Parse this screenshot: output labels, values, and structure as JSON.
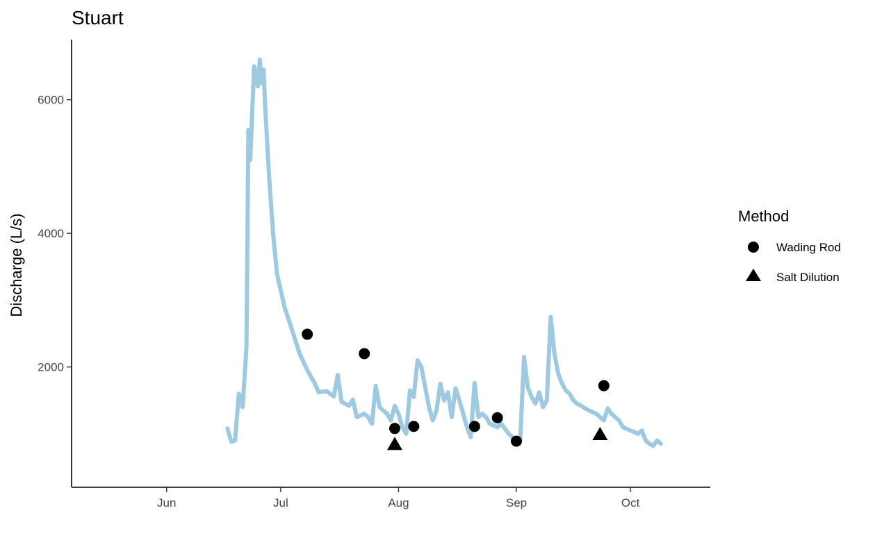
{
  "chart_data": {
    "type": "line",
    "title": "Stuart",
    "xlabel": "",
    "ylabel": "Discharge (L/s)",
    "x_axis_type": "date",
    "xlim": [
      "2021-05-07",
      "2021-10-22"
    ],
    "ylim": [
      200,
      6900
    ],
    "x_ticks": [
      {
        "date": "2021-06-01",
        "label": "Jun"
      },
      {
        "date": "2021-07-01",
        "label": "Jul"
      },
      {
        "date": "2021-08-01",
        "label": "Aug"
      },
      {
        "date": "2021-09-01",
        "label": "Sep"
      },
      {
        "date": "2021-10-01",
        "label": "Oct"
      }
    ],
    "y_ticks": [
      2000,
      4000,
      6000
    ],
    "grid": false,
    "legend_position": "right",
    "colors": {
      "line": "#9ecae1",
      "points": "#000000",
      "axis": "#000000"
    },
    "series": [
      {
        "name": "",
        "type": "line",
        "points": [
          [
            "2021-06-17",
            1080
          ],
          [
            "2021-06-18",
            880
          ],
          [
            "2021-06-19",
            900
          ],
          [
            "2021-06-20",
            1600
          ],
          [
            "2021-06-21",
            1400
          ],
          [
            "2021-06-22",
            2300
          ],
          [
            "2021-06-22T12",
            5550
          ],
          [
            "2021-06-23",
            5100
          ],
          [
            "2021-06-24",
            6500
          ],
          [
            "2021-06-25",
            6200
          ],
          [
            "2021-06-25T12",
            6600
          ],
          [
            "2021-06-26",
            6250
          ],
          [
            "2021-06-26T12",
            6450
          ],
          [
            "2021-06-27",
            5800
          ],
          [
            "2021-06-28",
            4800
          ],
          [
            "2021-06-29",
            4000
          ],
          [
            "2021-06-30",
            3400
          ],
          [
            "2021-07-02",
            2900
          ],
          [
            "2021-07-04",
            2550
          ],
          [
            "2021-07-06",
            2200
          ],
          [
            "2021-07-08",
            1950
          ],
          [
            "2021-07-10",
            1750
          ],
          [
            "2021-07-11",
            1620
          ],
          [
            "2021-07-13",
            1640
          ],
          [
            "2021-07-15",
            1560
          ],
          [
            "2021-07-16",
            1880
          ],
          [
            "2021-07-17",
            1480
          ],
          [
            "2021-07-19",
            1420
          ],
          [
            "2021-07-20",
            1510
          ],
          [
            "2021-07-21",
            1250
          ],
          [
            "2021-07-23",
            1300
          ],
          [
            "2021-07-24",
            1250
          ],
          [
            "2021-07-25",
            1150
          ],
          [
            "2021-07-26",
            1720
          ],
          [
            "2021-07-27",
            1400
          ],
          [
            "2021-07-29",
            1300
          ],
          [
            "2021-07-30",
            1200
          ],
          [
            "2021-07-31",
            1420
          ],
          [
            "2021-08-01",
            1300
          ],
          [
            "2021-08-02",
            1100
          ],
          [
            "2021-08-03",
            1000
          ],
          [
            "2021-08-04",
            1650
          ],
          [
            "2021-08-05",
            1550
          ],
          [
            "2021-08-06",
            2100
          ],
          [
            "2021-08-07",
            2000
          ],
          [
            "2021-08-08",
            1700
          ],
          [
            "2021-08-09",
            1400
          ],
          [
            "2021-08-10",
            1200
          ],
          [
            "2021-08-11",
            1350
          ],
          [
            "2021-08-12",
            1750
          ],
          [
            "2021-08-13",
            1500
          ],
          [
            "2021-08-14",
            1620
          ],
          [
            "2021-08-15",
            1250
          ],
          [
            "2021-08-16",
            1680
          ],
          [
            "2021-08-17",
            1500
          ],
          [
            "2021-08-18",
            1300
          ],
          [
            "2021-08-19",
            1100
          ],
          [
            "2021-08-20",
            950
          ],
          [
            "2021-08-21",
            1760
          ],
          [
            "2021-08-22",
            1250
          ],
          [
            "2021-08-23",
            1300
          ],
          [
            "2021-08-24",
            1250
          ],
          [
            "2021-08-25",
            1150
          ],
          [
            "2021-08-27",
            1100
          ],
          [
            "2021-08-28",
            1150
          ],
          [
            "2021-08-30",
            1000
          ],
          [
            "2021-08-31",
            950
          ],
          [
            "2021-09-01",
            900
          ],
          [
            "2021-09-02",
            900
          ],
          [
            "2021-09-03",
            2150
          ],
          [
            "2021-09-04",
            1700
          ],
          [
            "2021-09-05",
            1550
          ],
          [
            "2021-09-06",
            1450
          ],
          [
            "2021-09-07",
            1620
          ],
          [
            "2021-09-08",
            1400
          ],
          [
            "2021-09-09",
            1500
          ],
          [
            "2021-09-10",
            2750
          ],
          [
            "2021-09-11",
            2200
          ],
          [
            "2021-09-12",
            1900
          ],
          [
            "2021-09-13",
            1750
          ],
          [
            "2021-09-14",
            1650
          ],
          [
            "2021-09-15",
            1600
          ],
          [
            "2021-09-16",
            1500
          ],
          [
            "2021-09-17",
            1450
          ],
          [
            "2021-09-18",
            1420
          ],
          [
            "2021-09-20",
            1350
          ],
          [
            "2021-09-22",
            1300
          ],
          [
            "2021-09-24",
            1200
          ],
          [
            "2021-09-25",
            1380
          ],
          [
            "2021-09-26",
            1300
          ],
          [
            "2021-09-28",
            1200
          ],
          [
            "2021-09-29",
            1100
          ],
          [
            "2021-10-01",
            1050
          ],
          [
            "2021-10-03",
            1000
          ],
          [
            "2021-10-04",
            1050
          ],
          [
            "2021-10-05",
            900
          ],
          [
            "2021-10-06",
            850
          ],
          [
            "2021-10-07",
            820
          ],
          [
            "2021-10-08",
            900
          ],
          [
            "2021-10-09",
            850
          ]
        ]
      },
      {
        "name": "Wading Rod",
        "type": "scatter",
        "shape": "circle",
        "points": [
          [
            "2021-07-08",
            2490
          ],
          [
            "2021-07-23",
            2200
          ],
          [
            "2021-07-31",
            1080
          ],
          [
            "2021-08-05",
            1110
          ],
          [
            "2021-08-21",
            1110
          ],
          [
            "2021-08-27",
            1240
          ],
          [
            "2021-09-01",
            890
          ],
          [
            "2021-09-24",
            1720
          ]
        ]
      },
      {
        "name": "Salt Dilution",
        "type": "scatter",
        "shape": "triangle",
        "points": [
          [
            "2021-07-31",
            850
          ],
          [
            "2021-09-23",
            1000
          ]
        ]
      }
    ],
    "legend": {
      "title": "Method",
      "entries": [
        {
          "label": "Wading Rod",
          "shape": "circle"
        },
        {
          "label": "Salt Dilution",
          "shape": "triangle"
        }
      ]
    }
  }
}
